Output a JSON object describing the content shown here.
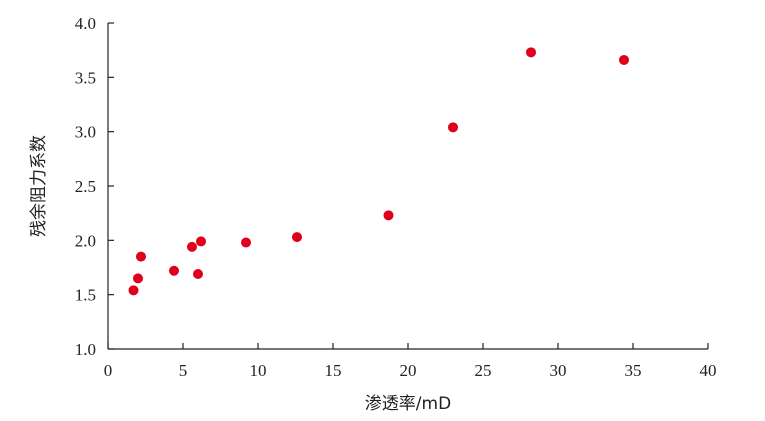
{
  "chart_data": {
    "type": "scatter",
    "title": "",
    "xlabel": "渗透率/mD",
    "ylabel": "残余阻力系数",
    "xlim": [
      0,
      40
    ],
    "ylim": [
      1.0,
      4.0
    ],
    "xticks": [
      "0",
      "5",
      "10",
      "15",
      "20",
      "25",
      "30",
      "35",
      "40"
    ],
    "yticks": [
      "1.0",
      "1.5",
      "2.0",
      "2.5",
      "3.0",
      "3.5",
      "4.0"
    ],
    "grid": false,
    "legend": "none",
    "colors": {
      "point": "#e0001b",
      "axis": "#222222"
    },
    "series": [
      {
        "points": [
          {
            "x": 1.7,
            "y": 1.54
          },
          {
            "x": 2.0,
            "y": 1.65
          },
          {
            "x": 2.2,
            "y": 1.85
          },
          {
            "x": 4.4,
            "y": 1.72
          },
          {
            "x": 5.6,
            "y": 1.94
          },
          {
            "x": 6.0,
            "y": 1.69
          },
          {
            "x": 6.2,
            "y": 1.99
          },
          {
            "x": 9.2,
            "y": 1.98
          },
          {
            "x": 12.6,
            "y": 2.03
          },
          {
            "x": 18.7,
            "y": 2.23
          },
          {
            "x": 23.0,
            "y": 3.04
          },
          {
            "x": 28.2,
            "y": 3.73
          },
          {
            "x": 34.4,
            "y": 3.66
          }
        ]
      }
    ]
  }
}
